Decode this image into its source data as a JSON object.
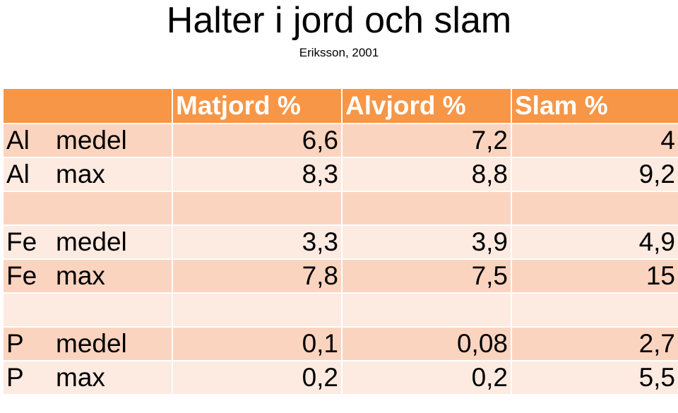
{
  "title": "Halter i jord och slam",
  "subtitle": "Eriksson, 2001",
  "table": {
    "headers": [
      "",
      "Matjord  %",
      "Alvjord  %",
      "Slam  %"
    ],
    "rows": [
      {
        "element": "Al",
        "stat": "medel",
        "matjord": "6,6",
        "alvjord": "7,2",
        "slam": "4"
      },
      {
        "element": "Al",
        "stat": "max",
        "matjord": "8,3",
        "alvjord": "8,8",
        "slam": "9,2"
      },
      {
        "element": "",
        "stat": "",
        "matjord": "",
        "alvjord": "",
        "slam": ""
      },
      {
        "element": "Fe",
        "stat": "medel",
        "matjord": "3,3",
        "alvjord": "3,9",
        "slam": "4,9"
      },
      {
        "element": "Fe",
        "stat": "max",
        "matjord": "7,8",
        "alvjord": "7,5",
        "slam": "15"
      },
      {
        "element": "",
        "stat": "",
        "matjord": "",
        "alvjord": "",
        "slam": ""
      },
      {
        "element": "P",
        "stat": "medel",
        "matjord": "0,1",
        "alvjord": "0,08",
        "slam": "2,7"
      },
      {
        "element": "P",
        "stat": "max",
        "matjord": "0,2",
        "alvjord": "0,2",
        "slam": "5,5"
      }
    ]
  },
  "colors": {
    "header_bg": "#f79646",
    "row_dark": "#fbd4c0",
    "row_light": "#fdeae1"
  }
}
